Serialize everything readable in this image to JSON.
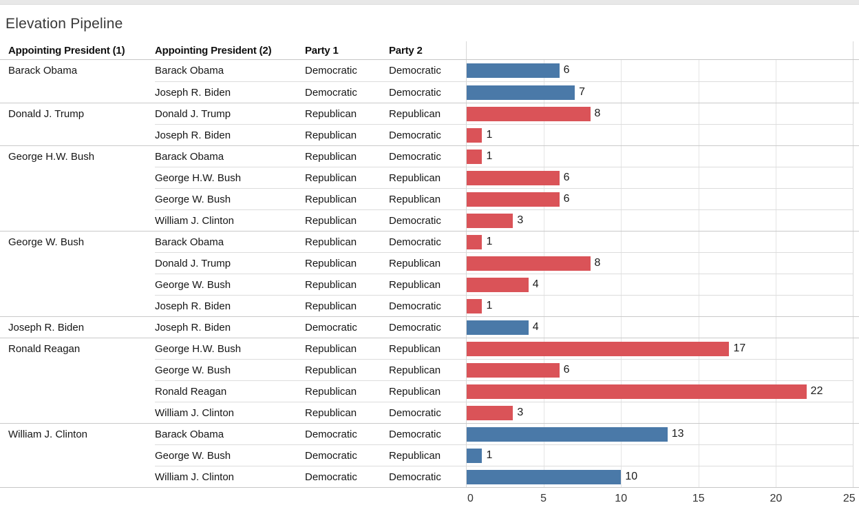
{
  "title": "Elevation Pipeline",
  "columns": [
    "Appointing President (1)",
    "Appointing President (2)",
    "Party 1",
    "Party 2"
  ],
  "party_colors": {
    "Democratic": "#4a79a8",
    "Republican": "#da5358"
  },
  "rows": [
    {
      "president1": "Barack Obama",
      "president2": "Barack Obama",
      "party1": "Democratic",
      "party2": "Democratic",
      "value": 6
    },
    {
      "president1": "",
      "president2": "Joseph R. Biden",
      "party1": "Democratic",
      "party2": "Democratic",
      "value": 7
    },
    {
      "president1": "Donald J. Trump",
      "president2": "Donald J. Trump",
      "party1": "Republican",
      "party2": "Republican",
      "value": 8
    },
    {
      "president1": "",
      "president2": "Joseph R. Biden",
      "party1": "Republican",
      "party2": "Democratic",
      "value": 1
    },
    {
      "president1": "George H.W. Bush",
      "president2": "Barack Obama",
      "party1": "Republican",
      "party2": "Democratic",
      "value": 1
    },
    {
      "president1": "",
      "president2": "George H.W. Bush",
      "party1": "Republican",
      "party2": "Republican",
      "value": 6
    },
    {
      "president1": "",
      "president2": "George W. Bush",
      "party1": "Republican",
      "party2": "Republican",
      "value": 6
    },
    {
      "president1": "",
      "president2": "William J. Clinton",
      "party1": "Republican",
      "party2": "Democratic",
      "value": 3
    },
    {
      "president1": "George W. Bush",
      "president2": "Barack Obama",
      "party1": "Republican",
      "party2": "Democratic",
      "value": 1
    },
    {
      "president1": "",
      "president2": "Donald J. Trump",
      "party1": "Republican",
      "party2": "Republican",
      "value": 8
    },
    {
      "president1": "",
      "president2": "George W. Bush",
      "party1": "Republican",
      "party2": "Republican",
      "value": 4
    },
    {
      "president1": "",
      "president2": "Joseph R. Biden",
      "party1": "Republican",
      "party2": "Democratic",
      "value": 1
    },
    {
      "president1": "Joseph R. Biden",
      "president2": "Joseph R. Biden",
      "party1": "Democratic",
      "party2": "Democratic",
      "value": 4
    },
    {
      "president1": "Ronald Reagan",
      "president2": "George H.W. Bush",
      "party1": "Republican",
      "party2": "Republican",
      "value": 17
    },
    {
      "president1": "",
      "president2": "George W. Bush",
      "party1": "Republican",
      "party2": "Republican",
      "value": 6
    },
    {
      "president1": "",
      "president2": "Ronald Reagan",
      "party1": "Republican",
      "party2": "Republican",
      "value": 22
    },
    {
      "president1": "",
      "president2": "William J. Clinton",
      "party1": "Republican",
      "party2": "Democratic",
      "value": 3
    },
    {
      "president1": "William J. Clinton",
      "president2": "Barack Obama",
      "party1": "Democratic",
      "party2": "Democratic",
      "value": 13
    },
    {
      "president1": "",
      "president2": "George W. Bush",
      "party1": "Democratic",
      "party2": "Republican",
      "value": 1
    },
    {
      "president1": "",
      "president2": "William J. Clinton",
      "party1": "Democratic",
      "party2": "Democratic",
      "value": 10
    }
  ],
  "chart_data": {
    "type": "bar",
    "orientation": "horizontal",
    "title": "Elevation Pipeline",
    "xlabel": "",
    "ylabel": "",
    "xlim": [
      0,
      25
    ],
    "x_ticks": [
      0,
      5,
      10,
      15,
      20,
      25
    ],
    "grid": true,
    "color_by": "Party 1",
    "legend": {
      "Democratic": "#4a79a8",
      "Republican": "#da5358"
    },
    "categories": [
      "Barack Obama / Barack Obama",
      "Barack Obama / Joseph R. Biden",
      "Donald J. Trump / Donald J. Trump",
      "Donald J. Trump / Joseph R. Biden",
      "George H.W. Bush / Barack Obama",
      "George H.W. Bush / George H.W. Bush",
      "George H.W. Bush / George W. Bush",
      "George H.W. Bush / William J. Clinton",
      "George W. Bush / Barack Obama",
      "George W. Bush / Donald J. Trump",
      "George W. Bush / George W. Bush",
      "George W. Bush / Joseph R. Biden",
      "Joseph R. Biden / Joseph R. Biden",
      "Ronald Reagan / George H.W. Bush",
      "Ronald Reagan / George W. Bush",
      "Ronald Reagan / Ronald Reagan",
      "Ronald Reagan / William J. Clinton",
      "William J. Clinton / Barack Obama",
      "William J. Clinton / George W. Bush",
      "William J. Clinton / William J. Clinton"
    ],
    "values": [
      6,
      7,
      8,
      1,
      1,
      6,
      6,
      3,
      1,
      8,
      4,
      1,
      4,
      17,
      6,
      22,
      3,
      13,
      1,
      10
    ],
    "bar_parties": [
      "Democratic",
      "Democratic",
      "Republican",
      "Republican",
      "Republican",
      "Republican",
      "Republican",
      "Republican",
      "Republican",
      "Republican",
      "Republican",
      "Republican",
      "Democratic",
      "Republican",
      "Republican",
      "Republican",
      "Republican",
      "Democratic",
      "Democratic",
      "Democratic"
    ]
  }
}
